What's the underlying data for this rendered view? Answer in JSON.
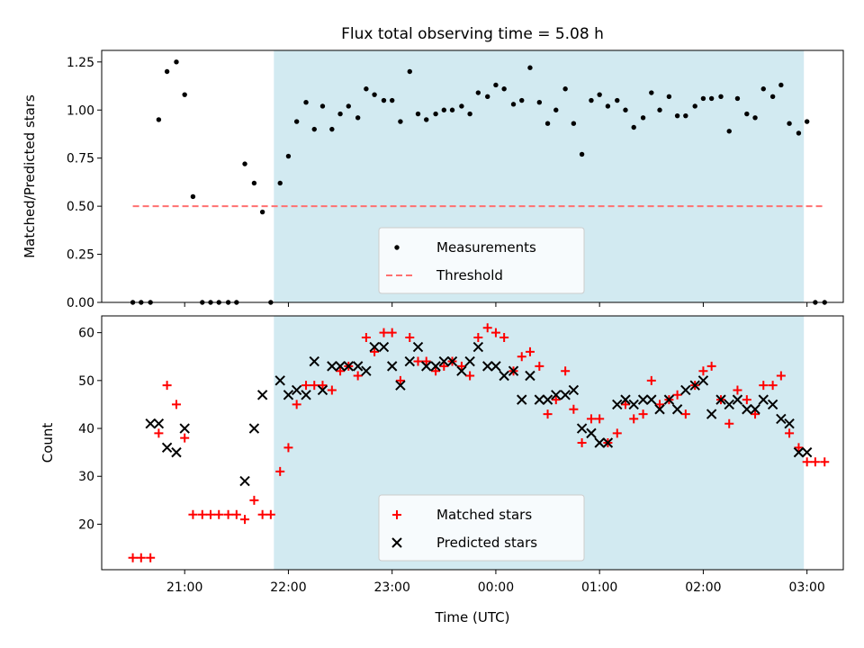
{
  "title": "Flux total observing time = 5.08 h",
  "chart_data": [
    {
      "type": "scatter",
      "ylabel": "Matched/Predicted stars",
      "xlabel": "",
      "ylim": [
        0,
        1.31
      ],
      "yticks": [
        0.0,
        0.25,
        0.5,
        0.75,
        1.0,
        1.25
      ],
      "ytick_labels": [
        "0.00",
        "0.25",
        "0.50",
        "0.75",
        "1.00",
        "1.25"
      ],
      "xlim": [
        20.2,
        27.35
      ],
      "legend": {
        "position": "lower center",
        "entries": [
          "Measurements",
          "Threshold"
        ]
      },
      "observing_window": {
        "start": 21.86,
        "end": 26.97,
        "color": "#add8e6"
      },
      "series": [
        {
          "name": "Measurements",
          "color": "#000000",
          "marker": "dot",
          "x": [
            20.5,
            20.58,
            20.67,
            20.75,
            20.83,
            20.92,
            21.0,
            21.08,
            21.17,
            21.25,
            21.33,
            21.42,
            21.5,
            21.58,
            21.67,
            21.75,
            21.83,
            21.92,
            22.0,
            22.08,
            22.17,
            22.25,
            22.33,
            22.42,
            22.5,
            22.58,
            22.67,
            22.75,
            22.83,
            22.92,
            23.0,
            23.08,
            23.17,
            23.25,
            23.33,
            23.42,
            23.5,
            23.58,
            23.67,
            23.75,
            23.83,
            23.92,
            24.0,
            24.08,
            24.17,
            24.25,
            24.33,
            24.42,
            24.5,
            24.58,
            24.67,
            24.75,
            24.83,
            24.92,
            25.0,
            25.08,
            25.17,
            25.25,
            25.33,
            25.42,
            25.5,
            25.58,
            25.67,
            25.75,
            25.83,
            25.92,
            26.0,
            26.08,
            26.17,
            26.25,
            26.33,
            26.42,
            26.5,
            26.58,
            26.67,
            26.75,
            26.83,
            26.92,
            27.0,
            27.08,
            27.17
          ],
          "y": [
            0,
            0,
            0,
            0.95,
            1.2,
            1.25,
            1.08,
            0.55,
            0,
            0,
            0,
            0,
            0,
            0.72,
            0.62,
            0.47,
            0,
            0.62,
            0.76,
            0.94,
            1.04,
            0.9,
            1.02,
            0.9,
            0.98,
            1.02,
            0.96,
            1.11,
            1.08,
            1.05,
            1.05,
            0.94,
            1.2,
            0.98,
            0.95,
            0.98,
            1.0,
            1.0,
            1.02,
            0.98,
            1.09,
            1.07,
            1.13,
            1.11,
            1.03,
            1.05,
            1.22,
            1.04,
            0.93,
            1.0,
            1.11,
            0.93,
            0.77,
            1.05,
            1.08,
            1.02,
            1.05,
            1.0,
            0.91,
            0.96,
            1.09,
            1.0,
            1.07,
            0.97,
            0.97,
            1.02,
            1.06,
            1.06,
            1.07,
            0.89,
            1.06,
            0.98,
            0.96,
            1.11,
            1.07,
            1.13,
            0.93,
            0.88,
            0.94,
            0,
            0
          ]
        },
        {
          "name": "Threshold",
          "color": "#ff7070",
          "style": "dashed",
          "x": [
            20.5,
            27.17
          ],
          "y": [
            0.5,
            0.5
          ]
        }
      ]
    },
    {
      "type": "scatter",
      "ylabel": "Count",
      "xlabel": "Time (UTC)",
      "ylim": [
        10.5,
        63.5
      ],
      "yticks": [
        20,
        30,
        40,
        50,
        60
      ],
      "ytick_labels": [
        "20",
        "30",
        "40",
        "50",
        "60"
      ],
      "xlim": [
        20.2,
        27.35
      ],
      "xticks": [
        21,
        22,
        23,
        24,
        25,
        26,
        27
      ],
      "xtick_labels": [
        "21:00",
        "22:00",
        "23:00",
        "00:00",
        "01:00",
        "02:00",
        "03:00"
      ],
      "legend": {
        "position": "lower center",
        "entries": [
          "Matched stars",
          "Predicted stars"
        ]
      },
      "observing_window": {
        "start": 21.86,
        "end": 26.97,
        "color": "#add8e6"
      },
      "series": [
        {
          "name": "Matched stars",
          "color": "#ff0000",
          "marker": "plus",
          "x": [
            20.5,
            20.58,
            20.67,
            20.75,
            20.83,
            20.92,
            21.0,
            21.08,
            21.17,
            21.25,
            21.33,
            21.42,
            21.5,
            21.58,
            21.67,
            21.75,
            21.83,
            21.92,
            22.0,
            22.08,
            22.17,
            22.25,
            22.33,
            22.42,
            22.5,
            22.58,
            22.67,
            22.75,
            22.83,
            22.92,
            23.0,
            23.08,
            23.17,
            23.25,
            23.33,
            23.42,
            23.5,
            23.58,
            23.67,
            23.75,
            23.83,
            23.92,
            24.0,
            24.08,
            24.17,
            24.25,
            24.33,
            24.42,
            24.5,
            24.58,
            24.67,
            24.75,
            24.83,
            24.92,
            25.0,
            25.08,
            25.17,
            25.25,
            25.33,
            25.42,
            25.5,
            25.58,
            25.67,
            25.75,
            25.83,
            25.92,
            26.0,
            26.08,
            26.17,
            26.25,
            26.33,
            26.42,
            26.5,
            26.58,
            26.67,
            26.75,
            26.83,
            26.92,
            27.0,
            27.08,
            27.17
          ],
          "y": [
            13,
            13,
            13,
            39,
            49,
            45,
            38,
            22,
            22,
            22,
            22,
            22,
            22,
            21,
            25,
            22,
            22,
            31,
            36,
            45,
            49,
            49,
            49,
            48,
            52,
            53,
            51,
            59,
            56,
            60,
            60,
            50,
            59,
            54,
            54,
            52,
            53,
            54,
            53,
            51,
            59,
            61,
            60,
            59,
            52,
            55,
            56,
            53,
            43,
            46,
            52,
            44,
            37,
            42,
            42,
            37,
            39,
            45,
            42,
            43,
            50,
            45,
            46,
            47,
            43,
            49,
            52,
            53,
            46,
            41,
            48,
            46,
            43,
            49,
            49,
            51,
            39,
            36,
            33,
            33,
            33
          ]
        },
        {
          "name": "Predicted stars",
          "color": "#000000",
          "marker": "x",
          "x": [
            20.67,
            20.75,
            20.83,
            20.92,
            21.0,
            21.58,
            21.67,
            21.75,
            21.92,
            22.0,
            22.08,
            22.17,
            22.25,
            22.33,
            22.42,
            22.5,
            22.58,
            22.67,
            22.75,
            22.83,
            22.92,
            23.0,
            23.08,
            23.17,
            23.25,
            23.33,
            23.42,
            23.5,
            23.58,
            23.67,
            23.75,
            23.83,
            23.92,
            24.0,
            24.08,
            24.17,
            24.25,
            24.33,
            24.42,
            24.5,
            24.58,
            24.67,
            24.75,
            24.83,
            24.92,
            25.0,
            25.08,
            25.17,
            25.25,
            25.33,
            25.42,
            25.5,
            25.58,
            25.67,
            25.75,
            25.83,
            25.92,
            26.0,
            26.08,
            26.17,
            26.25,
            26.33,
            26.42,
            26.5,
            26.58,
            26.67,
            26.75,
            26.83,
            26.92,
            27.0
          ],
          "y": [
            41,
            41,
            36,
            35,
            40,
            29,
            40,
            47,
            50,
            47,
            48,
            47,
            54,
            48,
            53,
            53,
            53,
            53,
            52,
            57,
            57,
            53,
            49,
            54,
            57,
            53,
            53,
            54,
            54,
            52,
            54,
            57,
            53,
            53,
            51,
            52,
            46,
            51,
            46,
            46,
            47,
            47,
            48,
            40,
            39,
            37,
            37,
            45,
            46,
            45,
            46,
            46,
            44,
            46,
            44,
            48,
            49,
            50,
            43,
            46,
            45,
            46,
            44,
            44,
            46,
            45,
            42,
            41,
            35,
            35
          ]
        }
      ]
    }
  ]
}
